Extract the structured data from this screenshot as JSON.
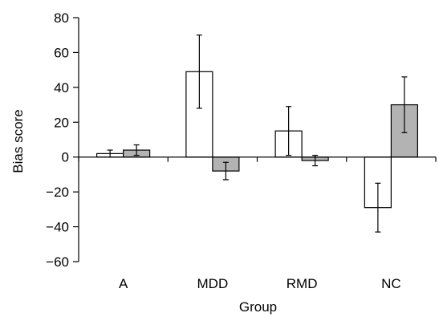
{
  "chart_data": {
    "type": "bar",
    "title": "",
    "xlabel": "Group",
    "ylabel": "Bias score",
    "categories": [
      "A",
      "MDD",
      "RMD",
      "NC"
    ],
    "series": [
      {
        "color": "#ffffff",
        "values": [
          2,
          49,
          15,
          -29
        ],
        "errors": [
          2,
          21,
          14,
          14
        ]
      },
      {
        "color": "#b3b3b3",
        "values": [
          4,
          -8,
          -2,
          30
        ],
        "errors": [
          3,
          5,
          3,
          16
        ]
      }
    ],
    "ylim": [
      -60,
      80
    ],
    "yticks": [
      -60,
      -40,
      -20,
      0,
      20,
      40,
      60,
      80
    ],
    "ytick_labels": [
      "−60",
      "−40",
      "−20",
      "0",
      "20",
      "40",
      "60",
      "80"
    ],
    "grid": false,
    "legend": "none"
  }
}
